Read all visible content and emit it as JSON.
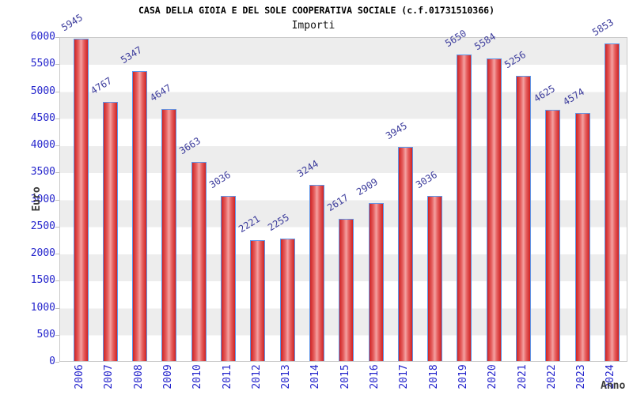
{
  "header": {
    "title": "CASA DELLA GIOIA E DEL SOLE COOPERATIVA SOCIALE (c.f.01731510366)",
    "subtitle": "Importi"
  },
  "colors": {
    "axis_text": "#2424cc",
    "value_label": "#3c3c9c",
    "axis_title": "#3a3a3a",
    "bar_fill_edge": "#cf2323",
    "bar_fill_mid": "#e66060",
    "bar_fill_center": "#f4a2a2",
    "bar_border": "#5e96e8",
    "band_gray": "#ededed",
    "plot_border": "#c9c9c9",
    "title_text": "#000000"
  },
  "chart_data": {
    "type": "bar",
    "title": "CASA DELLA GIOIA E DEL SOLE COOPERATIVA SOCIALE (c.f.01731510366)",
    "subtitle": "Importi",
    "categories": [
      "2006",
      "2007",
      "2008",
      "2009",
      "2010",
      "2011",
      "2012",
      "2013",
      "2014",
      "2015",
      "2016",
      "2017",
      "2018",
      "2019",
      "2020",
      "2021",
      "2022",
      "2023",
      "2024"
    ],
    "values": [
      5945,
      4767,
      5347,
      4647,
      3663,
      3036,
      2221,
      2255,
      3244,
      2617,
      2909,
      3945,
      3036,
      5650,
      5584,
      5256,
      4625,
      4574,
      5853
    ],
    "xlabel": "Anno",
    "ylabel": "Euro",
    "ylim": [
      0,
      6000
    ],
    "ytick_step": 500,
    "grid": "alternating-horizontal-bands",
    "legend_position": "none",
    "value_labels_rotated": true,
    "x_labels_rotated": true
  }
}
